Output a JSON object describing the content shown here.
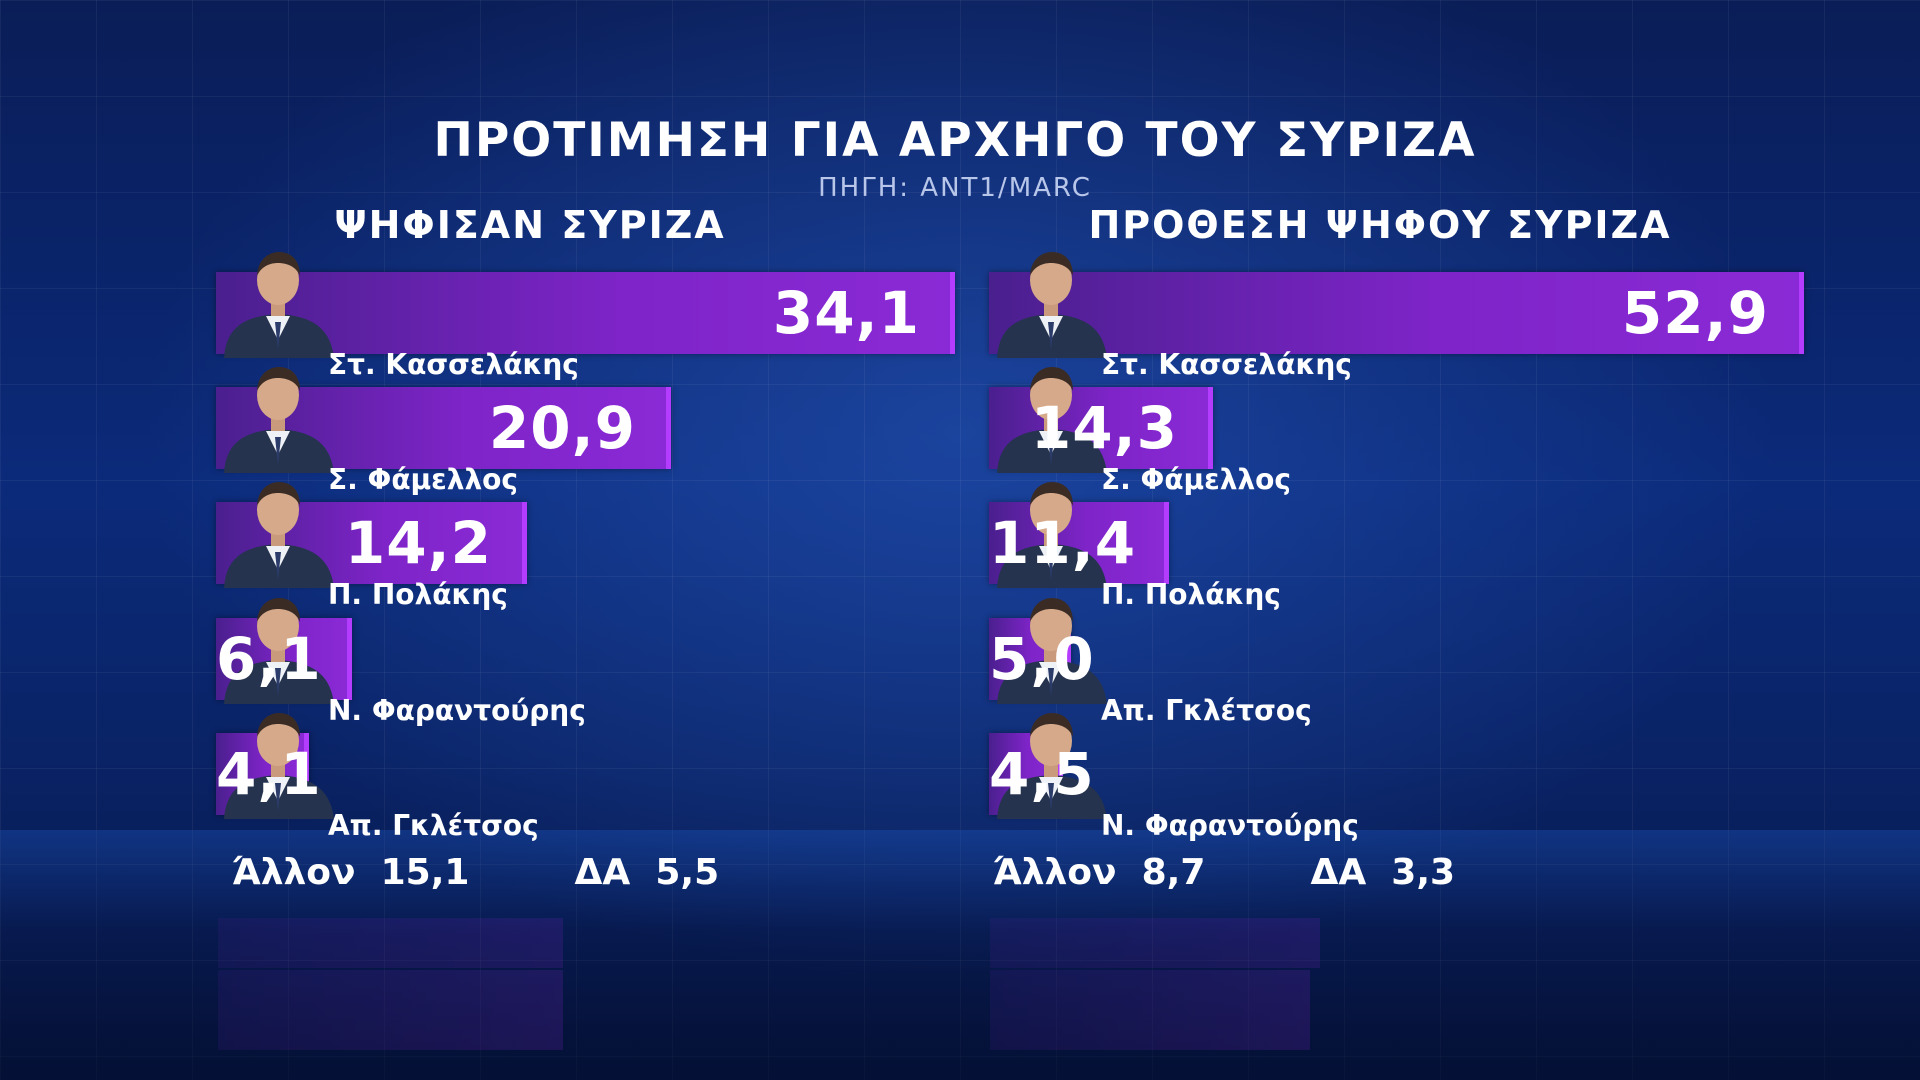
{
  "title": "ΠΡΟΤΙΜΗΣΗ ΓΙΑ ΑΡΧΗΓΟ ΤΟΥ ΣΥΡΙΖΑ",
  "source": "ΠΗΓΗ: ΑΝΤ1/MARC",
  "colors": {
    "bar_start": "#4a1f8e",
    "bar_end": "#8a2ad6",
    "bar_edge": "#b43cff",
    "background": "#0b2a7a"
  },
  "chart_data": [
    {
      "type": "bar",
      "orientation": "horizontal",
      "title": "ΨΗΦΙΣΑΝ ΣΥΡΙΖΑ",
      "categories": [
        "Στ. Κασσελάκης",
        "Σ. Φάμελλος",
        "Π. Πολάκης",
        "Ν. Φαραντούρης",
        "Απ. Γκλέτσος"
      ],
      "values": [
        34.1,
        20.9,
        14.2,
        6.1,
        4.1
      ],
      "value_labels": [
        "34,1",
        "20,9",
        "14,2",
        "6,1",
        "4,1"
      ],
      "other": {
        "label": "Άλλον",
        "value": "15,1"
      },
      "undecided": {
        "label": "ΔΑ",
        "value": "5,5"
      }
    },
    {
      "type": "bar",
      "orientation": "horizontal",
      "title": "ΠΡΟΘΕΣΗ ΨΗΦΟΥ ΣΥΡΙΖΑ",
      "categories": [
        "Στ. Κασσελάκης",
        "Σ. Φάμελλος",
        "Π. Πολάκης",
        "Απ. Γκλέτσος",
        "Ν. Φαραντούρης"
      ],
      "values": [
        52.9,
        14.3,
        11.4,
        5.0,
        4.5
      ],
      "value_labels": [
        "52,9",
        "14,3",
        "11,4",
        "5,0",
        "4,5"
      ],
      "other": {
        "label": "Άλλον",
        "value": "8,7"
      },
      "undecided": {
        "label": "ΔΑ",
        "value": "3,3"
      }
    }
  ]
}
